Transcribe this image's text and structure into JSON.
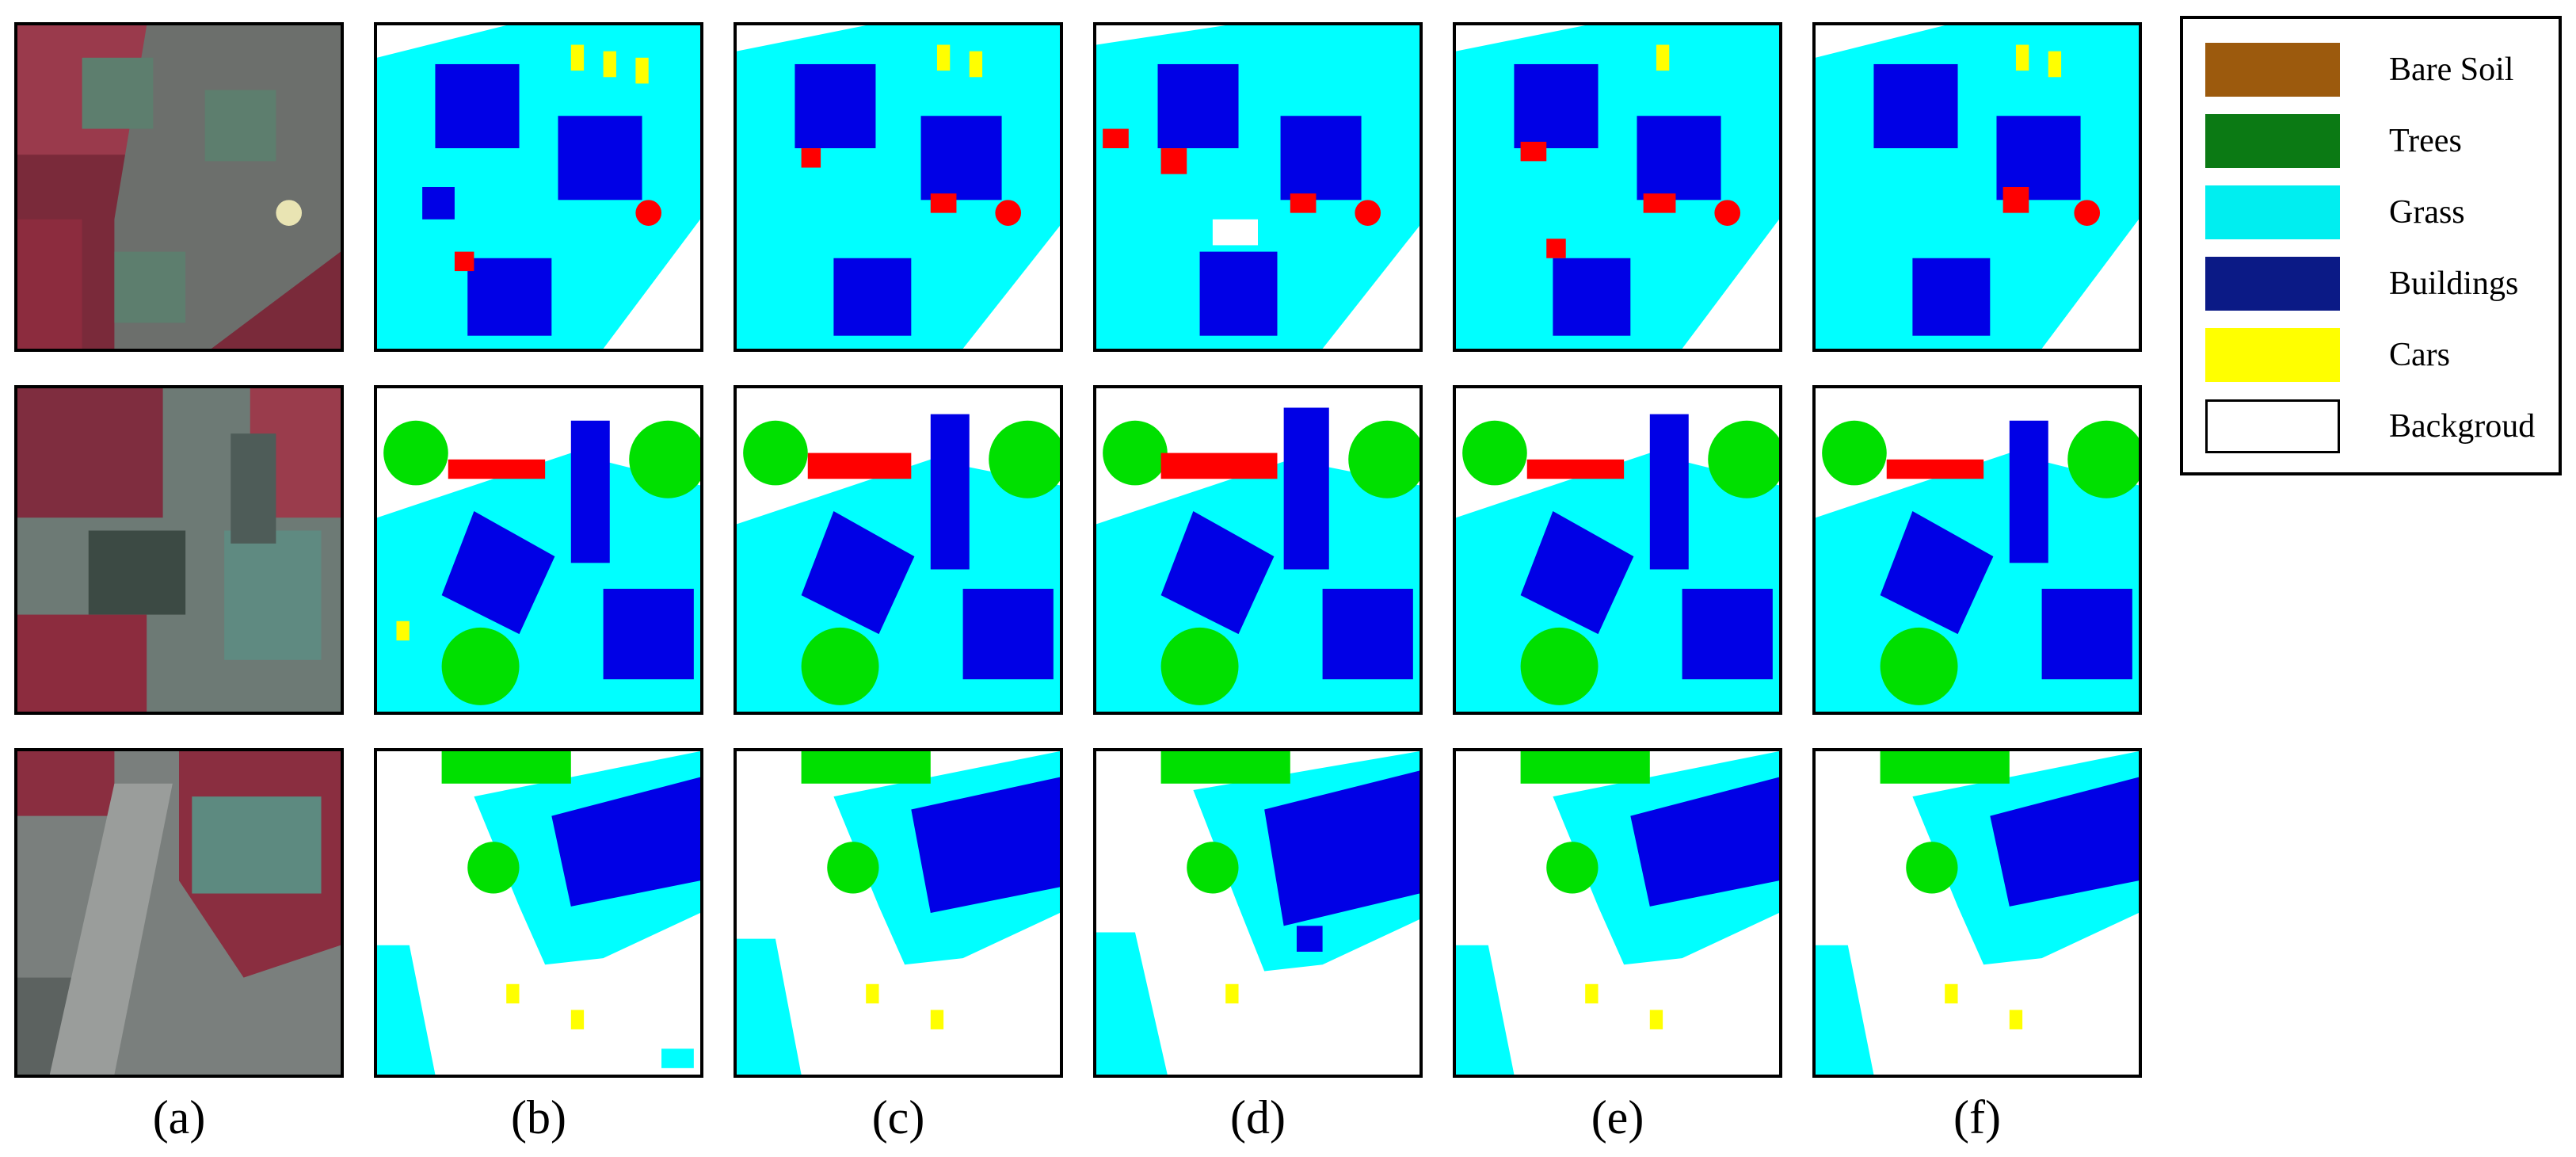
{
  "columns": [
    {
      "label": "(a)"
    },
    {
      "label": "(b)"
    },
    {
      "label": "(c)"
    },
    {
      "label": "(d)"
    },
    {
      "label": "(e)"
    },
    {
      "label": "(f)"
    }
  ],
  "legend": [
    {
      "label": "Bare Soil",
      "color": "#9c5a0d"
    },
    {
      "label": "Trees",
      "color": "#0b7a14"
    },
    {
      "label": "Grass",
      "color": "#00eef0"
    },
    {
      "label": "Buildings",
      "color": "#0b1a86"
    },
    {
      "label": "Cars",
      "color": "#ffff00"
    },
    {
      "label": "Backgroud",
      "color": "#ffffff"
    }
  ],
  "class_colors": {
    "grass": "#00ffff",
    "buildings": "#0000e6",
    "cars": "#ffff00",
    "trees": "#00e000",
    "clutter": "#ff0000",
    "background": "#ffffff"
  }
}
